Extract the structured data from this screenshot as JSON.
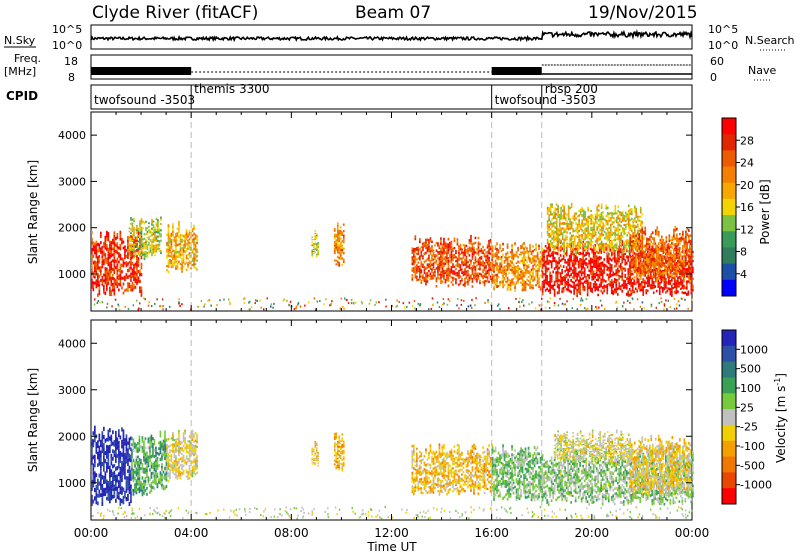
{
  "header": {
    "station": "Clyde River (fitACF)",
    "beam": "Beam 07",
    "date": "19/Nov/2015"
  },
  "strip_labels": {
    "nsky": "N.Sky",
    "nsearch": "N.Search",
    "freq_top": "Freq.",
    "freq_unit": "[MHz]",
    "cpid": "CPID",
    "nave": "Nave",
    "nsky_ticks": [
      "10^5",
      "10^0"
    ],
    "nsearch_ticks": [
      "10^5",
      "10^0"
    ],
    "freq_ticks": [
      "18",
      "8"
    ],
    "nave_ticks": [
      "60",
      "0"
    ]
  },
  "cpid_labels": [
    {
      "text": "twofsound -3503",
      "start_hour": 0.0
    },
    {
      "text": "themis 3300",
      "start_hour": 4.0
    },
    {
      "text": "twofsound -3503",
      "start_hour": 16.0
    },
    {
      "text": "rbsp 200",
      "start_hour": 18.0
    }
  ],
  "time_axis": {
    "ticks": [
      "00:00",
      "04:00",
      "08:00",
      "12:00",
      "16:00",
      "20:00",
      "00:00"
    ],
    "label": "Time UT"
  },
  "colors": {
    "power": [
      "#0000ff",
      "#1e4fa8",
      "#2f7d5d",
      "#3a9a5a",
      "#7cc242",
      "#f2d500",
      "#f7a800",
      "#f38000",
      "#ee5a00",
      "#e22600",
      "#ff0000"
    ],
    "velocity": [
      "#2424b8",
      "#2d4fa5",
      "#2f7a7a",
      "#39a055",
      "#77c93d",
      "#c0c0c0",
      "#f0d000",
      "#f4a000",
      "#f07800",
      "#ea4800",
      "#ff0000"
    ]
  },
  "chart_data": [
    {
      "type": "heatmap",
      "ylabel": "Slant Range [km]",
      "xlabel": "",
      "x_range_hours": [
        0,
        24
      ],
      "ylim": [
        200,
        4500
      ],
      "yticks": [
        1000,
        2000,
        3000,
        4000
      ],
      "colorbar": {
        "label": "Power [dB]",
        "ticks": [
          "4",
          "8",
          "12",
          "16",
          "20",
          "24",
          "28"
        ],
        "range": [
          0,
          30
        ]
      },
      "blobs": [
        {
          "x": [
            0.0,
            2.0
          ],
          "y": [
            600,
            1800
          ],
          "value": 26
        },
        {
          "x": [
            1.5,
            2.8
          ],
          "y": [
            1400,
            2100
          ],
          "value": 14
        },
        {
          "x": [
            3.0,
            4.2
          ],
          "y": [
            1100,
            2000
          ],
          "value": 18
        },
        {
          "x": [
            8.8,
            9.1
          ],
          "y": [
            1400,
            1800
          ],
          "value": 14
        },
        {
          "x": [
            9.7,
            10.1
          ],
          "y": [
            1200,
            2000
          ],
          "value": 20
        },
        {
          "x": [
            12.8,
            16.0
          ],
          "y": [
            800,
            1700
          ],
          "value": 24
        },
        {
          "x": [
            16.0,
            18.0
          ],
          "y": [
            700,
            1600
          ],
          "value": 20
        },
        {
          "x": [
            18.0,
            24.0
          ],
          "y": [
            600,
            1600
          ],
          "value": 28
        },
        {
          "x": [
            18.2,
            22.0
          ],
          "y": [
            1500,
            2400
          ],
          "value": 16
        },
        {
          "x": [
            21.5,
            23.9
          ],
          "y": [
            900,
            1900
          ],
          "value": 22
        }
      ]
    },
    {
      "type": "heatmap",
      "ylabel": "Slant Range [km]",
      "xlabel": "Time UT",
      "x_range_hours": [
        0,
        24
      ],
      "ylim": [
        200,
        4500
      ],
      "yticks": [
        1000,
        2000,
        3000,
        4000
      ],
      "colorbar": {
        "label": "Velocity [m s^-1]",
        "ticks": [
          "1000",
          "500",
          "100",
          "25",
          "-25",
          "-100",
          "-500",
          "-1000"
        ],
        "range": [
          -1000,
          1000
        ]
      },
      "blobs": [
        {
          "x": [
            0.0,
            1.6
          ],
          "y": [
            600,
            2100
          ],
          "value": 900
        },
        {
          "x": [
            1.6,
            3.0
          ],
          "y": [
            800,
            2000
          ],
          "value": 300
        },
        {
          "x": [
            3.0,
            4.2
          ],
          "y": [
            1100,
            2000
          ],
          "value": -120
        },
        {
          "x": [
            8.8,
            9.1
          ],
          "y": [
            1400,
            1800
          ],
          "value": -200
        },
        {
          "x": [
            9.7,
            10.1
          ],
          "y": [
            1300,
            2000
          ],
          "value": -300
        },
        {
          "x": [
            12.8,
            16.0
          ],
          "y": [
            800,
            1700
          ],
          "value": -250
        },
        {
          "x": [
            16.0,
            18.0
          ],
          "y": [
            700,
            1700
          ],
          "value": 200
        },
        {
          "x": [
            18.0,
            24.0
          ],
          "y": [
            600,
            1600
          ],
          "value": 150
        },
        {
          "x": [
            18.5,
            21.5
          ],
          "y": [
            1500,
            2000
          ],
          "value": -80
        },
        {
          "x": [
            21.5,
            23.9
          ],
          "y": [
            800,
            1900
          ],
          "value": -150
        }
      ]
    }
  ]
}
